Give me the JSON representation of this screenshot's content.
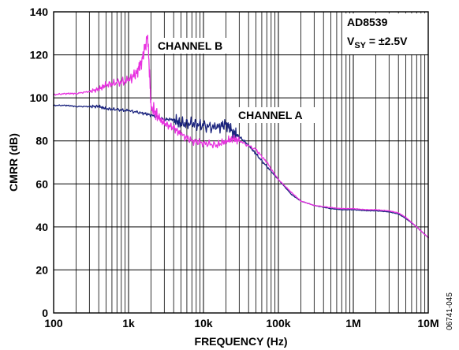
{
  "chart_data": {
    "type": "line",
    "title": "",
    "xlabel": "FREQUENCY (Hz)",
    "ylabel": "CMRR (dB)",
    "x_scale": "log",
    "xlim": [
      100,
      10000000
    ],
    "ylim": [
      0,
      140
    ],
    "x_ticks": [
      100,
      1000,
      10000,
      100000,
      1000000,
      10000000
    ],
    "x_tick_labels": [
      "100",
      "1k",
      "10k",
      "100k",
      "1M",
      "10M"
    ],
    "y_ticks": [
      0,
      20,
      40,
      60,
      80,
      100,
      120,
      140
    ],
    "y_tick_labels": [
      "0",
      "20",
      "40",
      "60",
      "80",
      "100",
      "120",
      "140"
    ],
    "grid": true,
    "series": [
      {
        "name": "CHANNEL A",
        "color": "#1a237e",
        "x": [
          100,
          150,
          200,
          300,
          400,
          500,
          700,
          1000,
          1500,
          2000,
          3000,
          4000,
          5000,
          7000,
          10000,
          15000,
          20000,
          25000,
          30000,
          40000,
          50000,
          70000,
          100000,
          150000,
          200000,
          300000,
          500000,
          700000,
          1000000,
          1500000,
          2000000,
          3000000,
          4000000,
          5000000,
          7000000,
          10000000
        ],
        "values": [
          96.5,
          96.5,
          96,
          96,
          96,
          95,
          94.5,
          94,
          93,
          92,
          90,
          90,
          88,
          88,
          87,
          86,
          88,
          84,
          82,
          78,
          74,
          68,
          62,
          55,
          52,
          50,
          48.5,
          48,
          48,
          47.5,
          47.5,
          47,
          46,
          44,
          40,
          35
        ]
      },
      {
        "name": "CHANNEL B",
        "color": "#e832e0",
        "x": [
          100,
          150,
          200,
          300,
          400,
          500,
          700,
          1000,
          1300,
          1500,
          1800,
          2000,
          2500,
          3000,
          4000,
          5000,
          7000,
          10000,
          15000,
          20000,
          25000,
          30000,
          50000,
          70000,
          100000,
          150000,
          200000,
          300000,
          500000,
          700000,
          1000000,
          1500000,
          2000000,
          3000000,
          4000000,
          5000000,
          7000000,
          10000000
        ],
        "values": [
          101.5,
          102,
          102,
          103,
          104,
          106,
          107,
          108,
          112,
          117,
          129,
          96,
          91,
          88,
          86,
          83,
          80,
          79,
          78,
          80,
          81,
          80,
          76,
          70,
          62,
          56,
          52,
          50,
          49,
          48.5,
          48.5,
          48,
          48,
          47.5,
          46.5,
          44.5,
          40,
          35
        ]
      }
    ],
    "annotations": [
      {
        "text": "CHANNEL B",
        "position": "above channel B peak"
      },
      {
        "text": "CHANNEL A",
        "position": "right of channel A noise"
      }
    ],
    "part_label": "AD8539",
    "supply_label": {
      "main": "V",
      "sub": "SY",
      "rest": " = ±2.5V"
    },
    "figure_id": "06741-045"
  }
}
